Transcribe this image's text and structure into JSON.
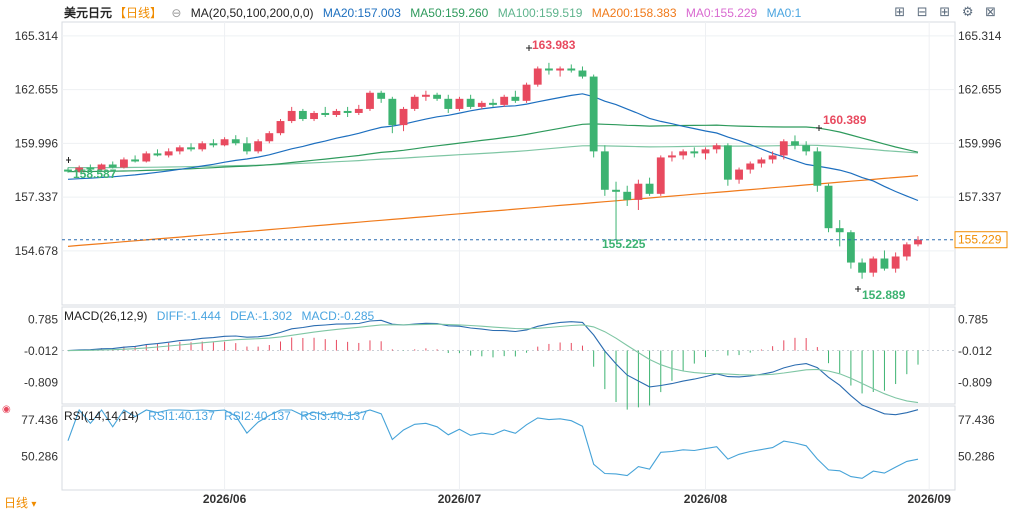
{
  "header": {
    "symbol": "美元日元",
    "period": "【日线】",
    "ma_label": "MA(20,50,100,200,0,0)",
    "ma20": "MA20:157.003",
    "ma50": "MA50:159.260",
    "ma100": "MA100:159.519",
    "ma200": "MA200:158.383",
    "ma0a": "MA0:155.229",
    "ma0b": "MA0:1"
  },
  "toolbar_icons": [
    "grid-icon",
    "minus-square-icon",
    "plus-square-icon",
    "settings-icon",
    "close-icon"
  ],
  "macd_legend": {
    "label": "MACD(26,12,9)",
    "diff": "DIFF:-1.444",
    "dea": "DEA:-1.302",
    "macd": "MACD:-0.285"
  },
  "rsi_legend": {
    "label": "RSI(14,14,14)",
    "rsi1": "RSI1:40.137",
    "rsi2": "RSI2:40.137",
    "rsi3": "RSI3:40.137"
  },
  "footer": {
    "period_tab": "日线"
  },
  "colors": {
    "up": "#e84a5f",
    "down": "#3cb371",
    "ma20": "#1d6fbf",
    "ma50": "#2e9a5c",
    "ma100": "#7fc6a4",
    "ma200": "#f07a1a",
    "ma0": "#d96ad0",
    "price_line": "#2b6cb0",
    "last_price": "#f08c00",
    "grid": "#eef0f3",
    "axis_text": "#333333",
    "high_label": "#e84a5f",
    "low_label": "#3cb371",
    "macd_line": "#7fc6a4",
    "diff_line": "#2b6cb0",
    "rsi_line": "#46a3d8"
  },
  "chart_data": [
    {
      "type": "candlestick",
      "panel": "main",
      "y_ticks_left": [
        "165.314",
        "162.655",
        "159.996",
        "157.337",
        "154.678"
      ],
      "y_ticks_right": [
        "165.314",
        "162.655",
        "159.996",
        "157.337"
      ],
      "ylim": [
        152.0,
        166.0
      ],
      "x_labels": [
        "2026/06",
        "2026/07",
        "2026/08",
        "2026/09"
      ],
      "last_price": "155.229",
      "annotations": {
        "high": "163.983",
        "low_a": "155.225",
        "high_b": "160.389",
        "low_b": "152.889",
        "start": "158.587"
      },
      "candles_ohlc_estimated": [
        [
          158.7,
          158.8,
          158.55,
          158.6
        ],
        [
          158.6,
          158.9,
          158.55,
          158.8
        ],
        [
          158.8,
          158.95,
          158.6,
          158.7
        ],
        [
          158.7,
          159.0,
          158.65,
          158.95
        ],
        [
          158.95,
          159.1,
          158.75,
          158.8
        ],
        [
          158.8,
          159.3,
          158.75,
          159.2
        ],
        [
          159.2,
          159.4,
          159.05,
          159.1
        ],
        [
          159.1,
          159.6,
          159.05,
          159.5
        ],
        [
          159.5,
          159.7,
          159.35,
          159.4
        ],
        [
          159.4,
          159.75,
          159.3,
          159.6
        ],
        [
          159.6,
          159.9,
          159.45,
          159.8
        ],
        [
          159.8,
          160.0,
          159.6,
          159.7
        ],
        [
          159.7,
          160.1,
          159.6,
          160.0
        ],
        [
          160.0,
          160.2,
          159.8,
          159.9
        ],
        [
          159.9,
          160.3,
          159.85,
          160.2
        ],
        [
          160.2,
          160.4,
          159.9,
          160.0
        ],
        [
          160.0,
          160.3,
          159.45,
          159.6
        ],
        [
          159.6,
          160.2,
          159.5,
          160.1
        ],
        [
          160.1,
          160.6,
          160.0,
          160.5
        ],
        [
          160.5,
          161.2,
          160.4,
          161.1
        ],
        [
          161.1,
          161.8,
          161.0,
          161.6
        ],
        [
          161.6,
          161.7,
          161.1,
          161.2
        ],
        [
          161.2,
          161.6,
          161.1,
          161.5
        ],
        [
          161.5,
          161.8,
          161.3,
          161.4
        ],
        [
          161.4,
          161.7,
          161.3,
          161.6
        ],
        [
          161.6,
          161.8,
          161.3,
          161.5
        ],
        [
          161.5,
          161.9,
          161.4,
          161.7
        ],
        [
          161.7,
          162.6,
          161.6,
          162.5
        ],
        [
          162.5,
          162.6,
          162.0,
          162.2
        ],
        [
          162.2,
          162.3,
          160.5,
          160.9
        ],
        [
          160.9,
          161.8,
          160.6,
          161.7
        ],
        [
          161.7,
          162.4,
          161.6,
          162.3
        ],
        [
          162.3,
          162.6,
          162.1,
          162.4
        ],
        [
          162.4,
          162.5,
          162.1,
          162.2
        ],
        [
          162.2,
          162.4,
          161.5,
          161.7
        ],
        [
          161.7,
          162.3,
          161.6,
          162.2
        ],
        [
          162.2,
          162.4,
          161.7,
          161.8
        ],
        [
          161.8,
          162.1,
          161.7,
          162.0
        ],
        [
          162.0,
          162.2,
          161.8,
          161.9
        ],
        [
          161.9,
          162.4,
          161.8,
          162.3
        ],
        [
          162.3,
          162.6,
          162.0,
          162.1
        ],
        [
          162.1,
          163.0,
          162.0,
          162.9
        ],
        [
          162.9,
          163.8,
          162.8,
          163.7
        ],
        [
          163.7,
          163.98,
          163.4,
          163.6
        ],
        [
          163.6,
          163.8,
          163.3,
          163.7
        ],
        [
          163.7,
          163.9,
          163.5,
          163.6
        ],
        [
          163.6,
          163.8,
          163.2,
          163.3
        ],
        [
          163.3,
          163.4,
          159.3,
          159.6
        ],
        [
          159.6,
          159.9,
          157.4,
          157.7
        ],
        [
          157.7,
          158.1,
          155.23,
          157.6
        ],
        [
          157.6,
          157.9,
          156.9,
          157.2
        ],
        [
          157.2,
          158.2,
          156.7,
          158.0
        ],
        [
          158.0,
          158.3,
          157.4,
          157.5
        ],
        [
          157.5,
          159.4,
          157.4,
          159.3
        ],
        [
          159.3,
          159.6,
          159.1,
          159.4
        ],
        [
          159.4,
          159.7,
          159.2,
          159.6
        ],
        [
          159.6,
          159.8,
          159.3,
          159.5
        ],
        [
          159.5,
          159.8,
          159.2,
          159.7
        ],
        [
          159.7,
          160.0,
          159.5,
          159.9
        ],
        [
          159.9,
          160.0,
          157.9,
          158.2
        ],
        [
          158.2,
          158.8,
          158.0,
          158.7
        ],
        [
          158.7,
          159.1,
          158.5,
          159.0
        ],
        [
          159.0,
          159.3,
          158.8,
          159.2
        ],
        [
          159.2,
          159.6,
          159.0,
          159.4
        ],
        [
          159.4,
          160.2,
          159.2,
          160.1
        ],
        [
          160.1,
          160.39,
          159.7,
          159.9
        ],
        [
          159.9,
          160.1,
          159.4,
          159.6
        ],
        [
          159.6,
          159.8,
          157.6,
          157.9
        ],
        [
          157.9,
          158.0,
          155.6,
          155.8
        ],
        [
          155.8,
          156.2,
          154.9,
          155.6
        ],
        [
          155.6,
          155.7,
          153.8,
          154.1
        ],
        [
          154.1,
          154.3,
          153.3,
          153.6
        ],
        [
          153.6,
          154.4,
          153.4,
          154.3
        ],
        [
          154.3,
          154.7,
          153.7,
          153.8
        ],
        [
          153.8,
          154.6,
          153.6,
          154.4
        ],
        [
          154.4,
          155.1,
          154.2,
          155.0
        ],
        [
          155.0,
          155.4,
          154.9,
          155.23
        ]
      ]
    },
    {
      "type": "macd",
      "panel": "macd",
      "y_ticks": [
        "0.785",
        "-0.012",
        "-0.809"
      ],
      "ylim": [
        -1.35,
        1.1
      ]
    },
    {
      "type": "line",
      "panel": "rsi",
      "y_ticks": [
        "77.436",
        "50.286"
      ],
      "ylim": [
        25,
        88
      ]
    }
  ]
}
